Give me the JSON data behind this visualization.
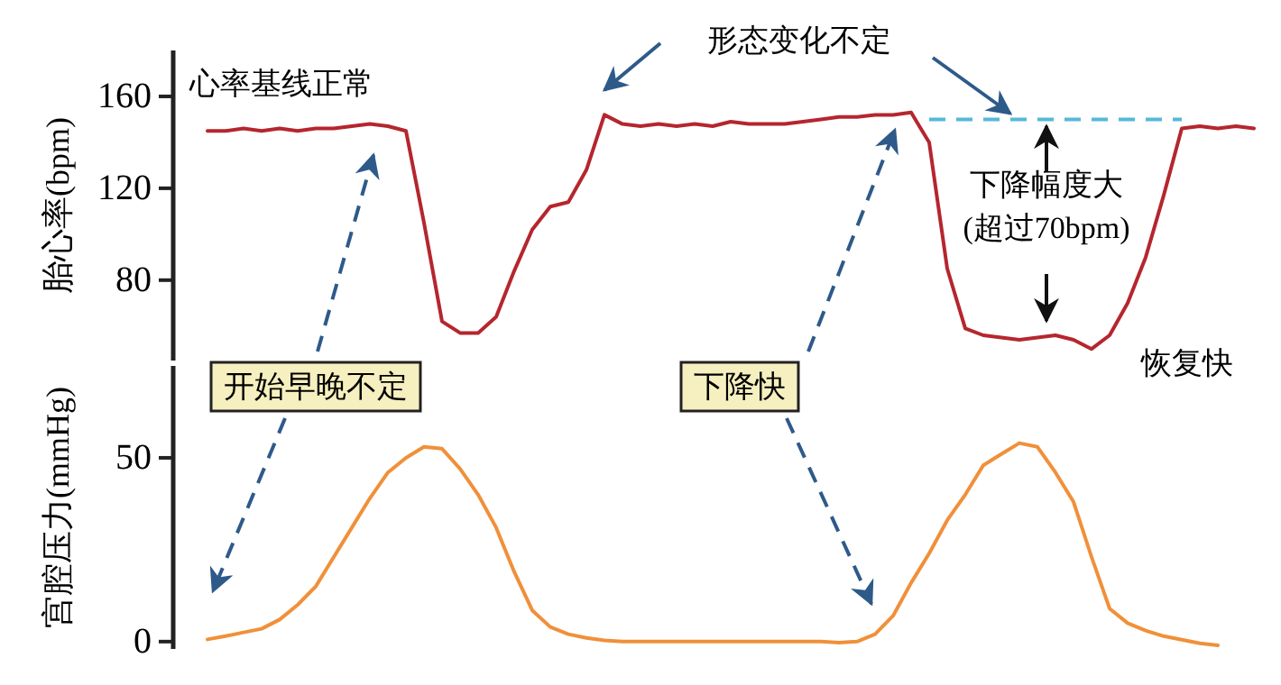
{
  "chart_data": [
    {
      "type": "line",
      "ylabel": "胎心率(bpm)",
      "categories": [
        null,
        null,
        null,
        null,
        null,
        null,
        null,
        null,
        null,
        null,
        null,
        null,
        null,
        null,
        null,
        null,
        null,
        null,
        null,
        null,
        null,
        null,
        null,
        null,
        null,
        null,
        null,
        null,
        null,
        null,
        null,
        null,
        null,
        null,
        null,
        null,
        null,
        null,
        null,
        null,
        null,
        null,
        null,
        null,
        null,
        null,
        null,
        null,
        null,
        null,
        null,
        null,
        null,
        null,
        null,
        null,
        null,
        null,
        null
      ],
      "series": [
        {
          "color": "#b5262e",
          "values": [
            145,
            145,
            146,
            145,
            146,
            145,
            146,
            146,
            147,
            148,
            147,
            145,
            105,
            62,
            57,
            57,
            64,
            84,
            102,
            112,
            114,
            128,
            152,
            148,
            147,
            148,
            147,
            148,
            147,
            149,
            148,
            148,
            148,
            149,
            150,
            151,
            151,
            152,
            152,
            153,
            140,
            85,
            59,
            56,
            55,
            54,
            55,
            56,
            54,
            50,
            56,
            70,
            90,
            117,
            146,
            147,
            146,
            147,
            146
          ]
        }
      ],
      "ylim": [
        45,
        180
      ],
      "yticks": [
        80,
        120,
        160
      ],
      "grid": false,
      "tick_labels": "y",
      "marker": "none",
      "line_style": "solid",
      "ref_lines": [
        {
          "axis": "y",
          "value": 150,
          "color": "#56b8d8",
          "line_style": "dashed"
        }
      ],
      "annotations": [
        "心率基线正常",
        "形态变化不定",
        "下降幅度大\n(超过70bpm)",
        "恢复快"
      ]
    },
    {
      "type": "line",
      "ylabel": "宫腔压力(mmHg)",
      "categories": [
        null,
        null,
        null,
        null,
        null,
        null,
        null,
        null,
        null,
        null,
        null,
        null,
        null,
        null,
        null,
        null,
        null,
        null,
        null,
        null,
        null,
        null,
        null,
        null,
        null,
        null,
        null,
        null,
        null,
        null,
        null,
        null,
        null,
        null,
        null,
        null,
        null,
        null,
        null,
        null,
        null,
        null,
        null,
        null,
        null,
        null,
        null,
        null,
        null,
        null,
        null,
        null,
        null,
        null,
        null,
        null,
        null,
        null,
        null
      ],
      "series": [
        {
          "color": "#f0903a",
          "values": [
            0.6,
            1.5,
            2.5,
            3.5,
            6,
            10,
            15,
            23,
            31,
            39,
            46,
            50,
            53,
            52.5,
            47,
            40,
            31,
            19,
            8.5,
            4,
            2,
            1,
            0.3,
            0,
            0,
            0,
            0,
            0,
            0,
            0,
            0,
            0,
            0,
            0,
            0,
            -0.3,
            0,
            2,
            7,
            16,
            24,
            33,
            40,
            48,
            51,
            54,
            53,
            46,
            38,
            23,
            9,
            5,
            3,
            1.5,
            0.5,
            -0.5,
            -1,
            null,
            null
          ]
        }
      ],
      "ylim": [
        -2,
        75
      ],
      "yticks": [
        0,
        50
      ],
      "grid": false,
      "tick_labels": "y",
      "marker": "none",
      "line_style": "solid",
      "annotations": [
        "开始早晚不定",
        "下降快"
      ]
    }
  ]
}
